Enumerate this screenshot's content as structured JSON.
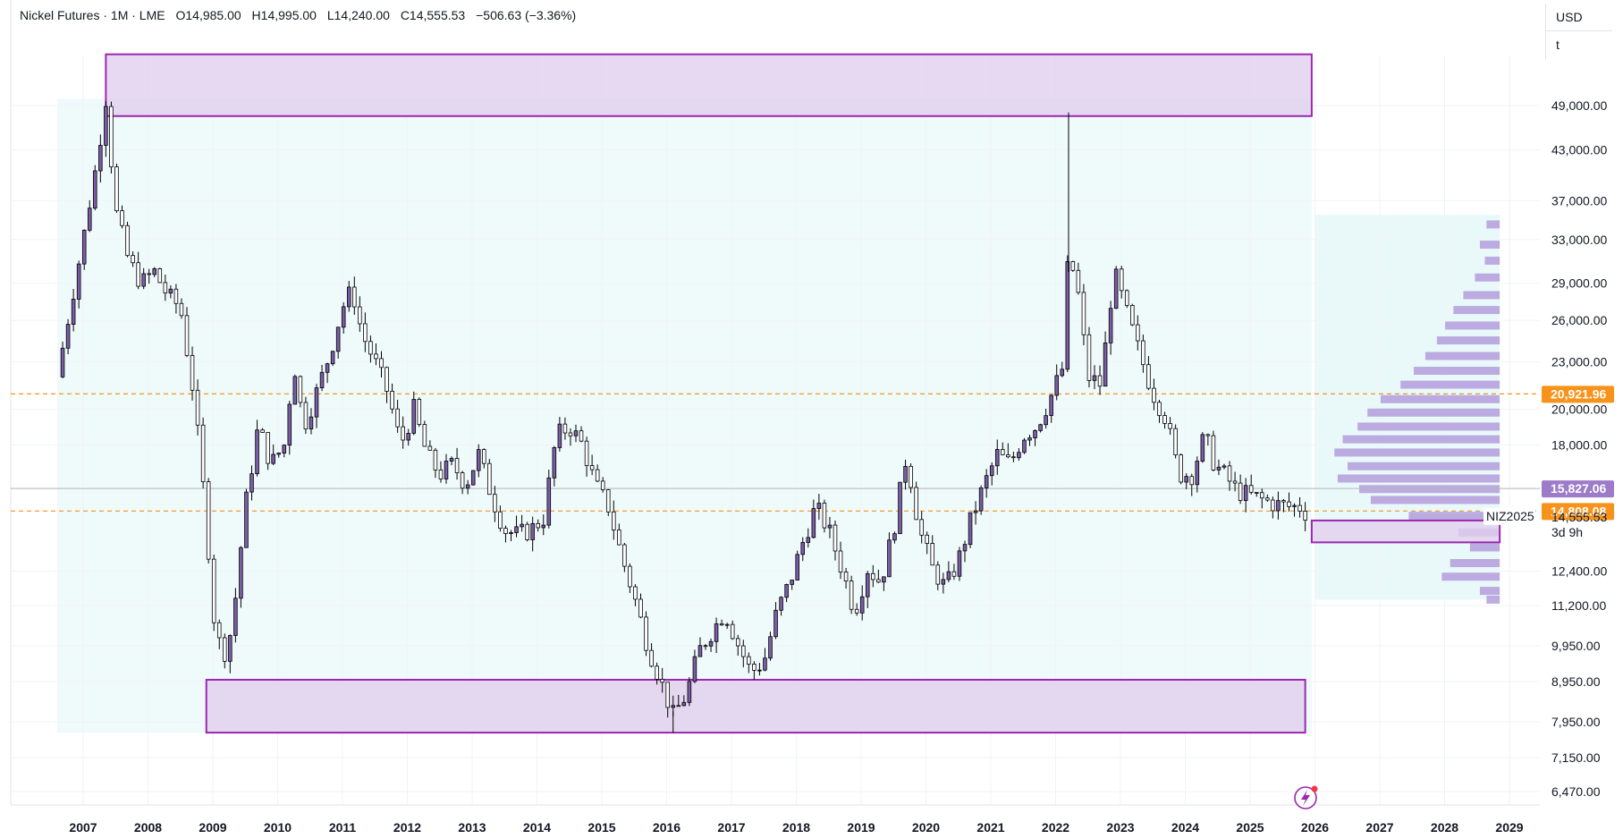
{
  "header": {
    "title": "Nickel Futures · 1M · LME",
    "open": "O14,985.00",
    "high": "H14,995.00",
    "low": "L14,240.00",
    "close": "C14,555.53",
    "change": "−506.63 (−3.36%)"
  },
  "scale": {
    "currency": "USD",
    "unit": "t"
  },
  "colors": {
    "zone_fill": "#e1cfee",
    "zone_stroke": "#9c27b0",
    "bg_tint": "#effafb",
    "orange": "#f7931a",
    "candle_up": "#7b5ea7",
    "candle_border": "#000000",
    "profile": "#b39ddb"
  },
  "price_tags": [
    {
      "label": "20,921.96",
      "value": 20921.96,
      "style": "orange"
    },
    {
      "label": "15,827.06",
      "value": 15827.06,
      "style": "purple"
    },
    {
      "label": "14,808.08",
      "value": 14808.08,
      "style": "orange"
    },
    {
      "label": "14,555.53",
      "value": 14555.53,
      "style": "plain"
    }
  ],
  "countdown": "3d 9h",
  "contract_label": "NIZ2025",
  "chart_data": {
    "type": "candlestick",
    "title": "Nickel Futures · 1M · LME",
    "y_scale": "log",
    "y_ticks": [
      {
        "label": "49,000.00",
        "value": 49000
      },
      {
        "label": "43,000.00",
        "value": 43000
      },
      {
        "label": "37,000.00",
        "value": 37000
      },
      {
        "label": "33,000.00",
        "value": 33000
      },
      {
        "label": "29,000.00",
        "value": 29000
      },
      {
        "label": "26,000.00",
        "value": 26000
      },
      {
        "label": "23,000.00",
        "value": 23000
      },
      {
        "label": "20,000.00",
        "value": 20000
      },
      {
        "label": "18,000.00",
        "value": 18000
      },
      {
        "label": "12,400.00",
        "value": 12400
      },
      {
        "label": "11,200.00",
        "value": 11200
      },
      {
        "label": "9,950.00",
        "value": 9950
      },
      {
        "label": "8,950.00",
        "value": 8950
      },
      {
        "label": "7,950.00",
        "value": 7950
      },
      {
        "label": "7,150.00",
        "value": 7150
      },
      {
        "label": "6,470.00",
        "value": 6470
      }
    ],
    "x_ticks": [
      "2007",
      "2008",
      "2009",
      "2010",
      "2011",
      "2012",
      "2013",
      "2014",
      "2015",
      "2016",
      "2017",
      "2018",
      "2019",
      "2020",
      "2021",
      "2022",
      "2023",
      "2024",
      "2025",
      "2026",
      "2027",
      "2028",
      "2029"
    ],
    "ylim": [
      6200,
      60000
    ],
    "xlim": [
      2006.3,
      2029.6
    ],
    "close_path": [
      [
        2006.6,
        22000
      ],
      [
        2006.8,
        27000
      ],
      [
        2007.0,
        33000
      ],
      [
        2007.2,
        41000
      ],
      [
        2007.35,
        50000
      ],
      [
        2007.5,
        36000
      ],
      [
        2007.7,
        31000
      ],
      [
        2007.9,
        29000
      ],
      [
        2008.1,
        30000
      ],
      [
        2008.3,
        28000
      ],
      [
        2008.5,
        27000
      ],
      [
        2008.7,
        21000
      ],
      [
        2008.9,
        14500
      ],
      [
        2009.0,
        11000
      ],
      [
        2009.15,
        9600
      ],
      [
        2009.3,
        10500
      ],
      [
        2009.5,
        15000
      ],
      [
        2009.7,
        19000
      ],
      [
        2009.9,
        17000
      ],
      [
        2010.1,
        18000
      ],
      [
        2010.25,
        23000
      ],
      [
        2010.4,
        19000
      ],
      [
        2010.6,
        21000
      ],
      [
        2010.8,
        23500
      ],
      [
        2011.0,
        27000
      ],
      [
        2011.15,
        28500
      ],
      [
        2011.3,
        25000
      ],
      [
        2011.5,
        23000
      ],
      [
        2011.7,
        21000
      ],
      [
        2011.9,
        18000
      ],
      [
        2012.1,
        20000
      ],
      [
        2012.3,
        17500
      ],
      [
        2012.5,
        16500
      ],
      [
        2012.7,
        17000
      ],
      [
        2012.9,
        16000
      ],
      [
        2013.1,
        17500
      ],
      [
        2013.3,
        15500
      ],
      [
        2013.5,
        14000
      ],
      [
        2013.7,
        13800
      ],
      [
        2013.9,
        14000
      ],
      [
        2014.1,
        14500
      ],
      [
        2014.3,
        18500
      ],
      [
        2014.5,
        19000
      ],
      [
        2014.7,
        18000
      ],
      [
        2014.9,
        16000
      ],
      [
        2015.1,
        15000
      ],
      [
        2015.3,
        13000
      ],
      [
        2015.5,
        11500
      ],
      [
        2015.7,
        10000
      ],
      [
        2015.9,
        9000
      ],
      [
        2016.1,
        8100
      ],
      [
        2016.3,
        8600
      ],
      [
        2016.5,
        9800
      ],
      [
        2016.7,
        10400
      ],
      [
        2016.9,
        11000
      ],
      [
        2017.1,
        10000
      ],
      [
        2017.3,
        9200
      ],
      [
        2017.5,
        9500
      ],
      [
        2017.7,
        11000
      ],
      [
        2017.9,
        12000
      ],
      [
        2018.1,
        13500
      ],
      [
        2018.3,
        15000
      ],
      [
        2018.5,
        14000
      ],
      [
        2018.7,
        12500
      ],
      [
        2018.9,
        11000
      ],
      [
        2019.1,
        12500
      ],
      [
        2019.3,
        12000
      ],
      [
        2019.5,
        14000
      ],
      [
        2019.7,
        17500
      ],
      [
        2019.9,
        14000
      ],
      [
        2020.1,
        12500
      ],
      [
        2020.3,
        11800
      ],
      [
        2020.5,
        12800
      ],
      [
        2020.7,
        14500
      ],
      [
        2020.9,
        16000
      ],
      [
        2021.1,
        17500
      ],
      [
        2021.3,
        17000
      ],
      [
        2021.5,
        18500
      ],
      [
        2021.7,
        19000
      ],
      [
        2021.9,
        20500
      ],
      [
        2022.1,
        22500
      ],
      [
        2022.2,
        32000
      ],
      [
        2022.35,
        28000
      ],
      [
        2022.5,
        22000
      ],
      [
        2022.7,
        21500
      ],
      [
        2022.9,
        30000
      ],
      [
        2023.1,
        26500
      ],
      [
        2023.3,
        23500
      ],
      [
        2023.5,
        21000
      ],
      [
        2023.7,
        19500
      ],
      [
        2023.9,
        16500
      ],
      [
        2024.1,
        16500
      ],
      [
        2024.3,
        18500
      ],
      [
        2024.45,
        17000
      ],
      [
        2024.6,
        16500
      ],
      [
        2024.8,
        15700
      ],
      [
        2025.0,
        15500
      ],
      [
        2025.2,
        15300
      ],
      [
        2025.4,
        15100
      ],
      [
        2025.6,
        15000
      ],
      [
        2025.8,
        14985
      ],
      [
        2025.9,
        14555
      ]
    ],
    "zones": [
      {
        "x0": 2007.35,
        "x1": 2025.95,
        "y0": 47500,
        "y1": 57000
      },
      {
        "x0": 2008.9,
        "x1": 2025.85,
        "y0": 7700,
        "y1": 9000
      },
      {
        "x0": 2025.95,
        "x1": 2028.85,
        "y0": 13500,
        "y1": 14400
      }
    ],
    "dashed_levels": [
      20921.96,
      14808.08
    ],
    "current_line": 15827.06,
    "volume_profile": [
      {
        "y": 34500,
        "w": 0.08
      },
      {
        "y": 32500,
        "w": 0.12
      },
      {
        "y": 31000,
        "w": 0.09
      },
      {
        "y": 29500,
        "w": 0.15
      },
      {
        "y": 28000,
        "w": 0.22
      },
      {
        "y": 26800,
        "w": 0.28
      },
      {
        "y": 25600,
        "w": 0.33
      },
      {
        "y": 24500,
        "w": 0.38
      },
      {
        "y": 23400,
        "w": 0.45
      },
      {
        "y": 22400,
        "w": 0.52
      },
      {
        "y": 21500,
        "w": 0.6
      },
      {
        "y": 20600,
        "w": 0.72
      },
      {
        "y": 19800,
        "w": 0.8
      },
      {
        "y": 19000,
        "w": 0.86
      },
      {
        "y": 18300,
        "w": 0.95
      },
      {
        "y": 17600,
        "w": 1.0
      },
      {
        "y": 16900,
        "w": 0.92
      },
      {
        "y": 16300,
        "w": 0.98
      },
      {
        "y": 15800,
        "w": 0.85
      },
      {
        "y": 15300,
        "w": 0.78
      },
      {
        "y": 14600,
        "w": 0.55
      },
      {
        "y": 13900,
        "w": 0.25
      },
      {
        "y": 13300,
        "w": 0.18
      },
      {
        "y": 12700,
        "w": 0.3
      },
      {
        "y": 12200,
        "w": 0.35
      },
      {
        "y": 11700,
        "w": 0.12
      },
      {
        "y": 11400,
        "w": 0.08
      }
    ]
  }
}
